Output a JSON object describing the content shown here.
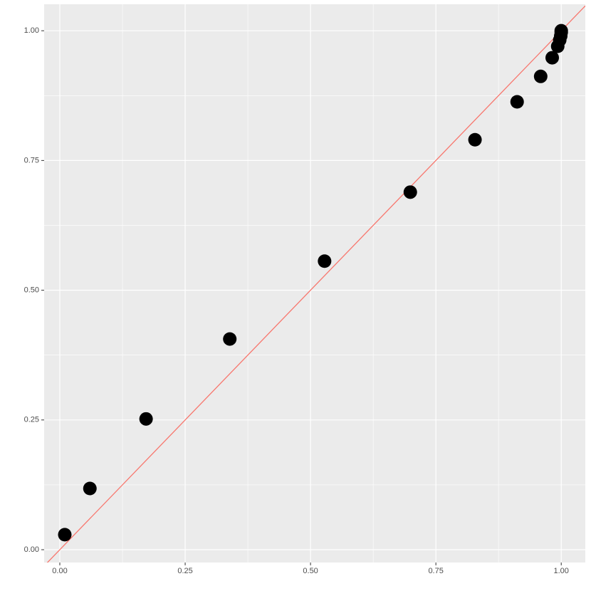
{
  "chart_data": {
    "type": "scatter",
    "x": [
      0.0099,
      0.06,
      0.172,
      0.339,
      0.528,
      0.699,
      0.828,
      0.912,
      0.959,
      0.982,
      0.993,
      0.997,
      0.999,
      1.0,
      1.0
    ],
    "series": [
      {
        "color": "#000000",
        "values": [
          0.029,
          0.118,
          0.252,
          0.406,
          0.556,
          0.689,
          0.79,
          0.863,
          0.912,
          0.948,
          0.97,
          0.982,
          0.99,
          0.997,
          1.0
        ]
      }
    ],
    "xlim": [
      -0.03125,
      1.048
    ],
    "ylim": [
      -0.0247,
      1.051
    ],
    "xticks": [
      {
        "value": 0,
        "label": "0.00"
      },
      {
        "value": 0.25,
        "label": "0.25"
      },
      {
        "value": 0.5,
        "label": "0.50"
      },
      {
        "value": 0.75,
        "label": "0.75"
      },
      {
        "value": 1,
        "label": "1.00"
      }
    ],
    "yticks": [
      {
        "value": 0,
        "label": "0.00"
      },
      {
        "value": 0.25,
        "label": "0.25"
      },
      {
        "value": 0.5,
        "label": "0.50"
      },
      {
        "value": 0.75,
        "label": "0.75"
      },
      {
        "value": 1,
        "label": "1.00"
      }
    ],
    "xminor": [
      0.125,
      0.375,
      0.625,
      0.875
    ],
    "yminor": [
      0.125,
      0.375,
      0.625,
      0.875
    ],
    "grid": true,
    "identity_line": true,
    "identity_line_color": "#f8766d"
  }
}
